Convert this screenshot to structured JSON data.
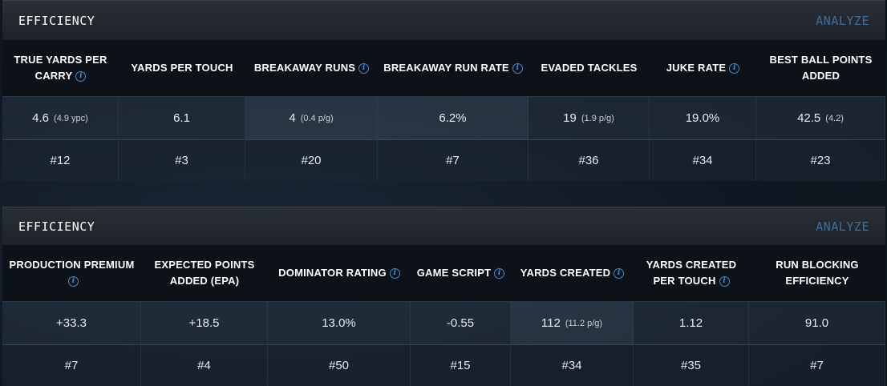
{
  "panels": [
    {
      "title": "EFFICIENCY",
      "analyze_label": "ANALYZE",
      "columns": [
        {
          "label": "TRUE YARDS PER CARRY",
          "value": "4.6",
          "sub": "(4.9 ypc)",
          "rank": "#12"
        },
        {
          "label": "YARDS PER TOUCH",
          "value": "6.1",
          "sub": "",
          "rank": "#3"
        },
        {
          "label": "BREAKAWAY RUNS",
          "value": "4",
          "sub": "(0.4 p/g)",
          "rank": "#20"
        },
        {
          "label": "BREAKAWAY RUN RATE",
          "value": "6.2%",
          "sub": "",
          "rank": "#7"
        },
        {
          "label": "EVADED TACKLES",
          "value": "19",
          "sub": "(1.9 p/g)",
          "rank": "#36"
        },
        {
          "label": "JUKE RATE",
          "value": "19.0%",
          "sub": "",
          "rank": "#34"
        },
        {
          "label": "BEST BALL POINTS ADDED",
          "value": "42.5",
          "sub": "(4.2)",
          "rank": "#23"
        }
      ]
    },
    {
      "title": "EFFICIENCY",
      "analyze_label": "ANALYZE",
      "columns": [
        {
          "label": "PRODUCTION PREMIUM",
          "value": "+33.3",
          "sub": "",
          "rank": "#7"
        },
        {
          "label": "EXPECTED POINTS ADDED (EPA)",
          "value": "+18.5",
          "sub": "",
          "rank": "#4"
        },
        {
          "label": "DOMINATOR RATING",
          "value": "13.0%",
          "sub": "",
          "rank": "#50"
        },
        {
          "label": "GAME SCRIPT",
          "value": "-0.55",
          "sub": "",
          "rank": "#15"
        },
        {
          "label": "YARDS CREATED",
          "value": "112",
          "sub": "(11.2 p/g)",
          "rank": "#34"
        },
        {
          "label": "YARDS CREATED PER TOUCH",
          "value": "1.12",
          "sub": "",
          "rank": "#35"
        },
        {
          "label": "RUN BLOCKING EFFICIENCY",
          "value": "91.0",
          "sub": "",
          "rank": "#7"
        }
      ]
    }
  ],
  "info_icon_glyph": "i",
  "colors": {
    "accent_info": "#3b8fd6",
    "analyze": "#3f6f9c"
  }
}
